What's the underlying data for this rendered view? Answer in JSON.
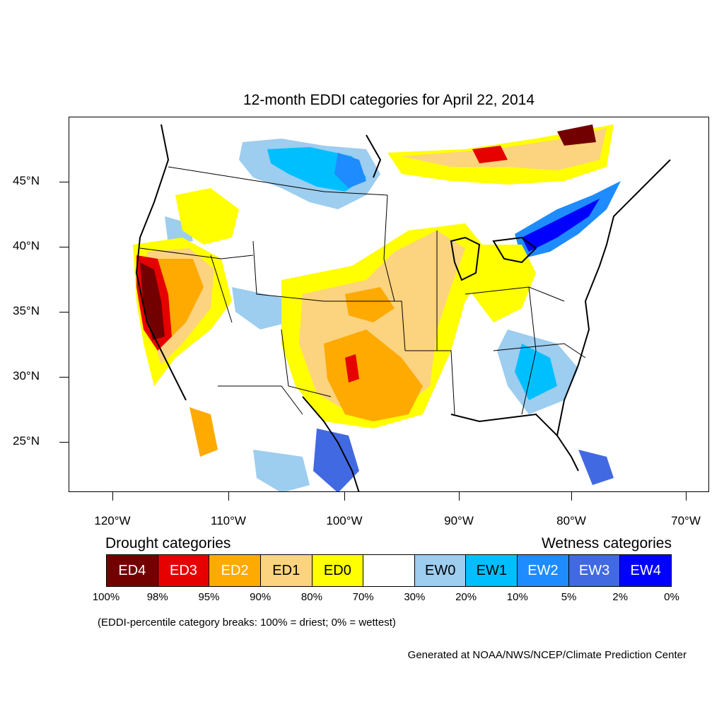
{
  "title": "12-month EDDI categories for April 22, 2014",
  "map": {
    "lat_labels": [
      "45°N",
      "40°N",
      "35°N",
      "30°N",
      "25°N"
    ],
    "lon_labels": [
      "120°W",
      "110°W",
      "100°W",
      "90°W",
      "80°W",
      "70°W"
    ]
  },
  "legend": {
    "drought_title": "Drought categories",
    "wetness_title": "Wetness categories",
    "categories": [
      {
        "label": "ED4",
        "color": "#730000",
        "text_color": "#ffffff"
      },
      {
        "label": "ED3",
        "color": "#e60000",
        "text_color": "#ffffff"
      },
      {
        "label": "ED2",
        "color": "#ffaa00",
        "text_color": "#ffffff"
      },
      {
        "label": "ED1",
        "color": "#fcd37f",
        "text_color": "#000000"
      },
      {
        "label": "ED0",
        "color": "#ffff00",
        "text_color": "#000000"
      },
      {
        "label": "",
        "color": "#ffffff",
        "text_color": "#000000"
      },
      {
        "label": "EW0",
        "color": "#9dcdef",
        "text_color": "#000000"
      },
      {
        "label": "EW1",
        "color": "#00bfff",
        "text_color": "#000000"
      },
      {
        "label": "EW2",
        "color": "#1e8cff",
        "text_color": "#ffffff"
      },
      {
        "label": "EW3",
        "color": "#4169e1",
        "text_color": "#ffffff"
      },
      {
        "label": "EW4",
        "color": "#0000ff",
        "text_color": "#ffffff"
      }
    ],
    "percent_breaks": [
      "100%",
      "98%",
      "95%",
      "90%",
      "80%",
      "70%",
      "30%",
      "20%",
      "10%",
      "5%",
      "2%",
      "0%"
    ]
  },
  "note": "(EDDI-percentile category breaks: 100% = driest; 0% = wettest)",
  "credit": "Generated at NOAA/NWS/NCEP/Climate Prediction Center"
}
